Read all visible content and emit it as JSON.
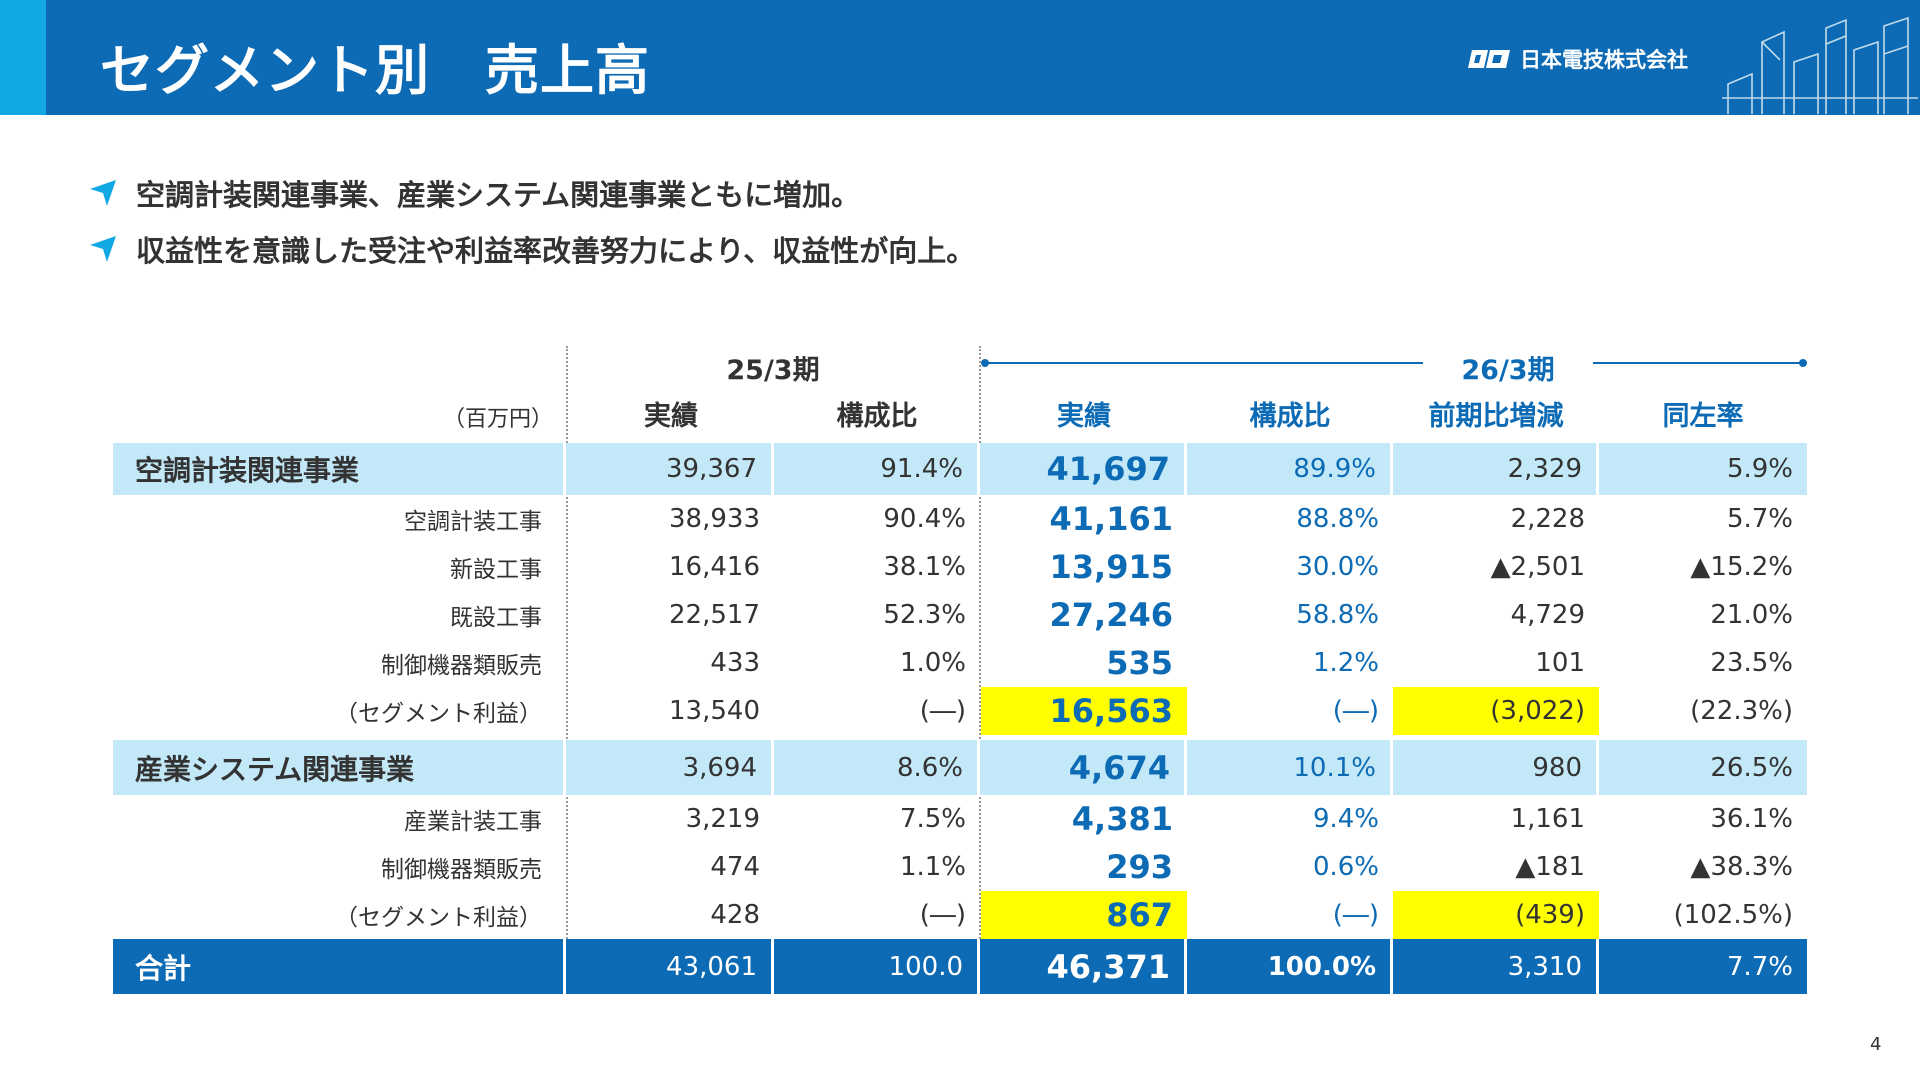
{
  "header": {
    "title": "セグメント別　売上高",
    "company": "日本電技株式会社"
  },
  "bullets": [
    "空調計装関連事業、産業システム関連事業ともに増加。",
    "収益性を意識した受注や利益率改善努力により、収益性が向上。"
  ],
  "table": {
    "unit": "（百万円）",
    "period_prev": "25/3期",
    "period_cur": "26/3期",
    "columns": [
      "実績",
      "構成比",
      "実績",
      "構成比",
      "前期比増減",
      "同左率"
    ],
    "rows": [
      {
        "label": "空調計装関連事業",
        "prev": "39,367",
        "prev_ratio": "91.4%",
        "cur": "41,697",
        "cur_ratio": "89.9%",
        "diff": "2,329",
        "rate": "5.9%"
      },
      {
        "label": "空調計装工事",
        "prev": "38,933",
        "prev_ratio": "90.4%",
        "cur": "41,161",
        "cur_ratio": "88.8%",
        "diff": "2,228",
        "rate": "5.7%"
      },
      {
        "label": "新設工事",
        "prev": "16,416",
        "prev_ratio": "38.1%",
        "cur": "13,915",
        "cur_ratio": "30.0%",
        "diff": "▲2,501",
        "rate": "▲15.2%"
      },
      {
        "label": "既設工事",
        "prev": "22,517",
        "prev_ratio": "52.3%",
        "cur": "27,246",
        "cur_ratio": "58.8%",
        "diff": "4,729",
        "rate": "21.0%"
      },
      {
        "label": "制御機器類販売",
        "prev": "433",
        "prev_ratio": "1.0%",
        "cur": "535",
        "cur_ratio": "1.2%",
        "diff": "101",
        "rate": "23.5%"
      },
      {
        "label": "（セグメント利益）",
        "prev": "13,540",
        "prev_ratio": "(―)",
        "cur": "16,563",
        "cur_ratio": "(―)",
        "diff": "(3,022)",
        "rate": "(22.3%)"
      },
      {
        "label": "産業システム関連事業",
        "prev": "3,694",
        "prev_ratio": "8.6%",
        "cur": "4,674",
        "cur_ratio": "10.1%",
        "diff": "980",
        "rate": "26.5%"
      },
      {
        "label": "産業計装工事",
        "prev": "3,219",
        "prev_ratio": "7.5%",
        "cur": "4,381",
        "cur_ratio": "9.4%",
        "diff": "1,161",
        "rate": "36.1%"
      },
      {
        "label": "制御機器類販売",
        "prev": "474",
        "prev_ratio": "1.1%",
        "cur": "293",
        "cur_ratio": "0.6%",
        "diff": "▲181",
        "rate": "▲38.3%"
      },
      {
        "label": "（セグメント利益）",
        "prev": "428",
        "prev_ratio": "(―)",
        "cur": "867",
        "cur_ratio": "(―)",
        "diff": "(439)",
        "rate": "(102.5%)"
      },
      {
        "label": "合計",
        "prev": "43,061",
        "prev_ratio": "100.0",
        "cur": "46,371",
        "cur_ratio": "100.0%",
        "diff": "3,310",
        "rate": "7.7%"
      }
    ]
  },
  "page_number": "4",
  "colors": {
    "header_bg": "#0c6bb4",
    "header_accent": "#12a8e6",
    "segment_row_bg": "#c3e8f8",
    "highlight_yellow": "#ffff00",
    "current_value_text": "#0c6bb4"
  }
}
